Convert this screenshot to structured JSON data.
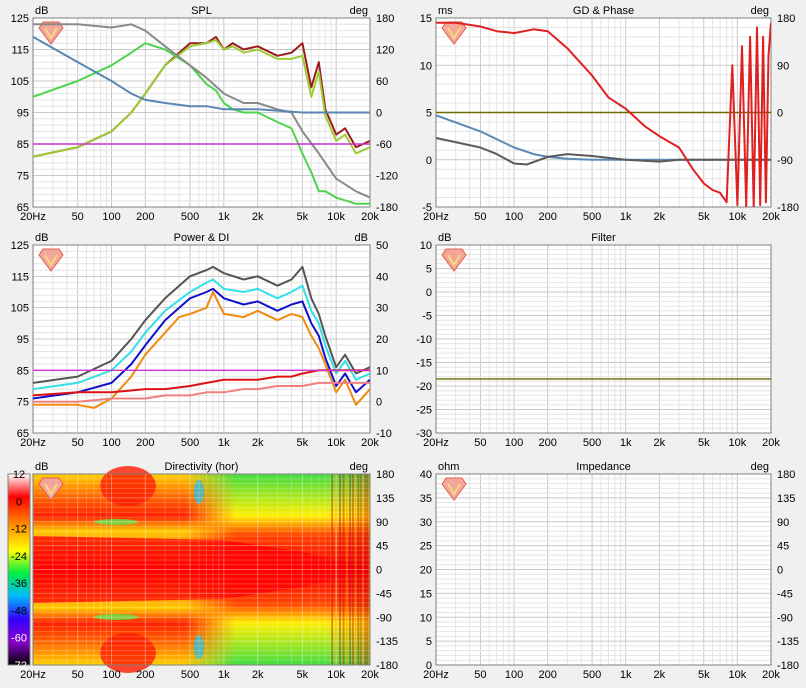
{
  "freq_ticks": [
    "20Hz",
    "50",
    "100",
    "200",
    "500",
    "1k",
    "2k",
    "5k",
    "10k",
    "20k"
  ],
  "panels": {
    "spl": {
      "title": "SPL",
      "left_unit": "dB",
      "right_unit": "deg",
      "left_ticks": [
        "125",
        "115",
        "105",
        "95",
        "85",
        "75",
        "65"
      ],
      "right_ticks": [
        "180",
        "120",
        "60",
        "0",
        "-60",
        "-120",
        "-180"
      ]
    },
    "gd": {
      "title": "GD & Phase",
      "left_unit": "ms",
      "right_unit": "deg",
      "left_ticks": [
        "15",
        "10",
        "5",
        "0",
        "-5"
      ],
      "right_ticks": [
        "180",
        "90",
        "0",
        "-90",
        "-180"
      ]
    },
    "power": {
      "title": "Power & DI",
      "left_unit": "dB",
      "right_unit": "dB",
      "left_ticks": [
        "125",
        "115",
        "105",
        "95",
        "85",
        "75",
        "65"
      ],
      "right_ticks": [
        "50",
        "40",
        "30",
        "20",
        "10",
        "0",
        "-10"
      ]
    },
    "filter": {
      "title": "Filter",
      "left_unit": "dB",
      "left_ticks": [
        "10",
        "5",
        "0",
        "-5",
        "-10",
        "-15",
        "-20",
        "-25",
        "-30"
      ]
    },
    "directivity": {
      "title": "Directivity (hor)",
      "left_unit": "dB",
      "right_unit": "deg",
      "scale_ticks": [
        "12",
        "0",
        "-12",
        "-24",
        "-36",
        "-48",
        "-60",
        "-72"
      ],
      "right_ticks": [
        "180",
        "135",
        "90",
        "45",
        "0",
        "-45",
        "-90",
        "-135",
        "-180"
      ]
    },
    "impedance": {
      "title": "Impedance",
      "left_unit": "ohm",
      "right_unit": "deg",
      "left_ticks": [
        "40",
        "35",
        "30",
        "25",
        "20",
        "15",
        "10",
        "5",
        "0"
      ],
      "right_ticks": [
        "180",
        "135",
        "90",
        "45",
        "0",
        "-45",
        "-90",
        "-135",
        "-180"
      ]
    }
  },
  "colors": {
    "grid": "#c8c8c8",
    "minor": "#e4e4e4",
    "magenta": "#cc33cc",
    "olive": "#6b6b00"
  },
  "chart_data": [
    {
      "type": "line",
      "panel": "spl",
      "xscale": "log",
      "xlim": [
        20,
        20000
      ],
      "ylim": [
        65,
        125
      ],
      "series": [
        {
          "color": "#9b1c1c",
          "x": [
            20,
            50,
            100,
            150,
            200,
            300,
            500,
            700,
            850,
            1000,
            1200,
            1500,
            2000,
            3000,
            4000,
            5000,
            6000,
            7000,
            8000,
            10000,
            12000,
            15000,
            20000
          ],
          "y": [
            81,
            84,
            89,
            95,
            101,
            110,
            117,
            117,
            119,
            115,
            117,
            115,
            116,
            113,
            114,
            117,
            103,
            111,
            96,
            88,
            90,
            84,
            86
          ]
        },
        {
          "color": "#9acd32",
          "x": [
            20,
            50,
            100,
            150,
            200,
            300,
            500,
            700,
            850,
            1000,
            1200,
            1500,
            2000,
            3000,
            4000,
            5000,
            6000,
            7000,
            8000,
            10000,
            12000,
            15000,
            20000
          ],
          "y": [
            81,
            84,
            89,
            95,
            101,
            110,
            116,
            117,
            118,
            115,
            116,
            114,
            115,
            112,
            112,
            113,
            100,
            108,
            94,
            86,
            88,
            82,
            84
          ]
        },
        {
          "color": "#4ed44e",
          "x": [
            20,
            50,
            100,
            150,
            200,
            300,
            500,
            700,
            850,
            1000,
            1200,
            1500,
            2000,
            3000,
            4000,
            5000,
            6000,
            7000,
            8000,
            10000,
            15000,
            20000
          ],
          "y": [
            100,
            105,
            110,
            114,
            117,
            115,
            110,
            104,
            102,
            98,
            96,
            95,
            95,
            92,
            90,
            82,
            76,
            70,
            70,
            68,
            66,
            66
          ]
        },
        {
          "color": "#8a8a8a",
          "x": [
            20,
            50,
            100,
            150,
            200,
            300,
            500,
            700,
            1000,
            1500,
            2000,
            3000,
            4000,
            5000,
            7000,
            10000,
            15000,
            20000
          ],
          "y": [
            123,
            123,
            122,
            123,
            121,
            116,
            110,
            106,
            101,
            98,
            98,
            96,
            95,
            89,
            82,
            74,
            70,
            68
          ]
        },
        {
          "color": "#5b86b0",
          "x": [
            20,
            50,
            100,
            150,
            200,
            300,
            500,
            700,
            1000,
            2000,
            5000,
            10000,
            20000
          ],
          "y": [
            119,
            111,
            105,
            101,
            99,
            98,
            97,
            97,
            96,
            96,
            95,
            95,
            95
          ]
        },
        {
          "color": "#cc33cc",
          "x": [
            20,
            20000
          ],
          "y": [
            85,
            85
          ]
        }
      ]
    },
    {
      "type": "line",
      "panel": "gd",
      "xscale": "log",
      "xlim": [
        20,
        20000
      ],
      "ylim": [
        -5,
        15
      ],
      "series": [
        {
          "color": "#6b6b00",
          "x": [
            20,
            20000
          ],
          "y": [
            5,
            5
          ]
        },
        {
          "color": "#5a8ab5",
          "x": [
            20,
            50,
            100,
            150,
            200,
            300,
            500,
            1000,
            2000,
            5000,
            10000,
            20000
          ],
          "y": [
            4.7,
            3,
            1.3,
            0.6,
            0.3,
            0.1,
            0,
            0,
            0,
            0,
            0,
            0
          ]
        },
        {
          "color": "#5a5a5a",
          "x": [
            20,
            50,
            70,
            100,
            130,
            200,
            300,
            500,
            700,
            1000,
            2000,
            3000,
            5000,
            7000,
            10000,
            15000,
            20000
          ],
          "y": [
            2.3,
            1.3,
            0.6,
            -0.4,
            -0.5,
            0.3,
            0.6,
            0.4,
            0.2,
            0,
            -0.2,
            0,
            0,
            0,
            0,
            0,
            0
          ]
        },
        {
          "color": "#e02020",
          "x": [
            20,
            30,
            50,
            70,
            100,
            150,
            200,
            300,
            500,
            700,
            1000,
            1500,
            2000,
            3000,
            4000,
            5000,
            6000,
            7000,
            8000,
            9000,
            10000,
            11000,
            12000,
            13000,
            14000,
            15000,
            16000,
            17000,
            18000,
            19000,
            20000
          ],
          "y": [
            14.5,
            14.5,
            14.1,
            13.6,
            13.4,
            13.8,
            13.6,
            11.8,
            8.9,
            6.6,
            5.4,
            3.5,
            2.5,
            1.3,
            -1.0,
            -2.5,
            -3.2,
            -3.5,
            -4.5,
            10,
            -4.8,
            12,
            -4.9,
            13,
            -5,
            14,
            -4.8,
            13,
            -4.5,
            11,
            14.5
          ]
        }
      ]
    },
    {
      "type": "line",
      "panel": "power",
      "xscale": "log",
      "xlim": [
        20,
        20000
      ],
      "ylim": [
        65,
        125
      ],
      "series": [
        {
          "color": "#555555",
          "x": [
            20,
            50,
            100,
            150,
            200,
            300,
            500,
            700,
            800,
            1000,
            1500,
            2000,
            3000,
            4000,
            5000,
            6000,
            7000,
            8000,
            10000,
            12000,
            15000,
            20000
          ],
          "y": [
            81,
            83,
            88,
            95,
            101,
            108,
            115,
            117,
            118,
            116,
            114,
            115,
            112,
            114,
            118,
            108,
            103,
            96,
            86,
            90,
            84,
            86
          ]
        },
        {
          "color": "#33e0e8",
          "x": [
            20,
            50,
            100,
            150,
            200,
            300,
            500,
            700,
            800,
            1000,
            1500,
            2000,
            3000,
            4000,
            5000,
            6000,
            7000,
            8000,
            10000,
            12000,
            15000,
            20000
          ],
          "y": [
            79,
            81,
            85,
            91,
            97,
            104,
            110,
            113,
            114,
            111,
            110,
            111,
            108,
            110,
            112,
            104,
            100,
            93,
            84,
            88,
            82,
            84
          ]
        },
        {
          "color": "#1111cc",
          "x": [
            20,
            50,
            100,
            150,
            200,
            300,
            500,
            700,
            800,
            1000,
            1500,
            2000,
            3000,
            4000,
            5000,
            6000,
            7000,
            8000,
            10000,
            12000,
            15000,
            20000
          ],
          "y": [
            76,
            78,
            81,
            87,
            93,
            101,
            108,
            110,
            111,
            108,
            106,
            107,
            104,
            106,
            107,
            100,
            96,
            89,
            80,
            84,
            78,
            82
          ]
        },
        {
          "color": "#f08a10",
          "x": [
            20,
            50,
            70,
            100,
            150,
            200,
            300,
            400,
            500,
            700,
            800,
            1000,
            1500,
            2000,
            3000,
            4000,
            5000,
            6000,
            7000,
            8000,
            10000,
            12000,
            15000,
            20000
          ],
          "y": [
            74,
            74,
            73,
            76,
            83,
            90,
            97,
            102,
            103,
            105,
            110,
            103,
            102,
            104,
            101,
            103,
            102,
            96,
            92,
            87,
            78,
            82,
            74,
            79
          ]
        },
        {
          "color": "#dd1111",
          "x": [
            20,
            50,
            100,
            200,
            300,
            500,
            700,
            1000,
            1500,
            2000,
            3000,
            4000,
            5000,
            7000,
            10000,
            15000,
            20000
          ],
          "y": [
            77,
            78,
            78,
            79,
            79,
            80,
            81,
            82,
            82,
            82,
            83,
            83,
            84,
            85,
            85,
            85,
            85
          ]
        },
        {
          "color": "#f08080",
          "x": [
            20,
            50,
            100,
            200,
            300,
            500,
            700,
            1000,
            1500,
            2000,
            3000,
            4000,
            5000,
            7000,
            10000,
            15000,
            20000
          ],
          "y": [
            75,
            75,
            76,
            76,
            77,
            77,
            78,
            78,
            79,
            79,
            80,
            80,
            80,
            81,
            81,
            81,
            81
          ]
        },
        {
          "color": "#cc33cc",
          "x": [
            20,
            20000
          ],
          "y": [
            85,
            85
          ]
        }
      ]
    },
    {
      "type": "line",
      "panel": "filter",
      "xscale": "log",
      "xlim": [
        20,
        20000
      ],
      "ylim": [
        -30,
        10
      ],
      "series": [
        {
          "color": "#6b6b00",
          "x": [
            20,
            20000
          ],
          "y": [
            -18.5,
            -18.5
          ]
        }
      ]
    },
    {
      "type": "heatmap",
      "panel": "directivity",
      "xscale": "log",
      "xlim": [
        20,
        20000
      ],
      "ylim": [
        -180,
        180
      ],
      "zlim": [
        -72,
        12
      ]
    },
    {
      "type": "line",
      "panel": "impedance",
      "xscale": "log",
      "xlim": [
        20,
        20000
      ],
      "ylim": [
        0,
        40
      ],
      "series": []
    }
  ]
}
